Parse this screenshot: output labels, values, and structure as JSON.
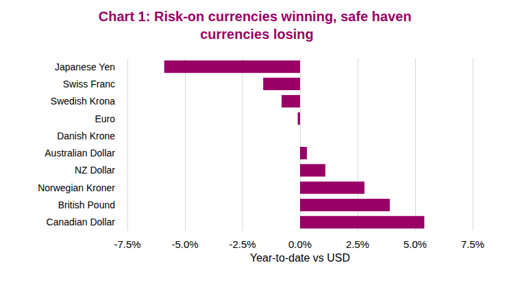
{
  "chart_data": {
    "type": "bar",
    "orientation": "horizontal",
    "title": "Chart 1: Risk-on currencies winning, safe haven currencies losing",
    "x_label": "Year-to-date vs USD",
    "categories": [
      "Japanese Yen",
      "Swiss Franc",
      "Swedish Krona",
      "Euro",
      "Danish Krone",
      "Australian Dollar",
      "NZ Dollar",
      "Norwegian Kroner",
      "British Pound",
      "Canadian Dollar"
    ],
    "values": [
      -5.9,
      -1.6,
      -0.8,
      -0.1,
      0.0,
      0.3,
      1.1,
      2.8,
      3.9,
      5.4
    ],
    "color": "#990066",
    "xlim": [
      -7.5,
      7.5
    ],
    "xticks": [
      {
        "value": -7.5,
        "label": "-7.5%"
      },
      {
        "value": -5,
        "label": "-5.0%"
      },
      {
        "value": -2.5,
        "label": "-2.5%"
      },
      {
        "value": 0,
        "label": "0.0%"
      },
      {
        "value": 2.5,
        "label": "2.5%"
      },
      {
        "value": 5,
        "label": "5.0%"
      },
      {
        "value": 7.5,
        "label": "7.5%"
      }
    ],
    "grid": true
  }
}
